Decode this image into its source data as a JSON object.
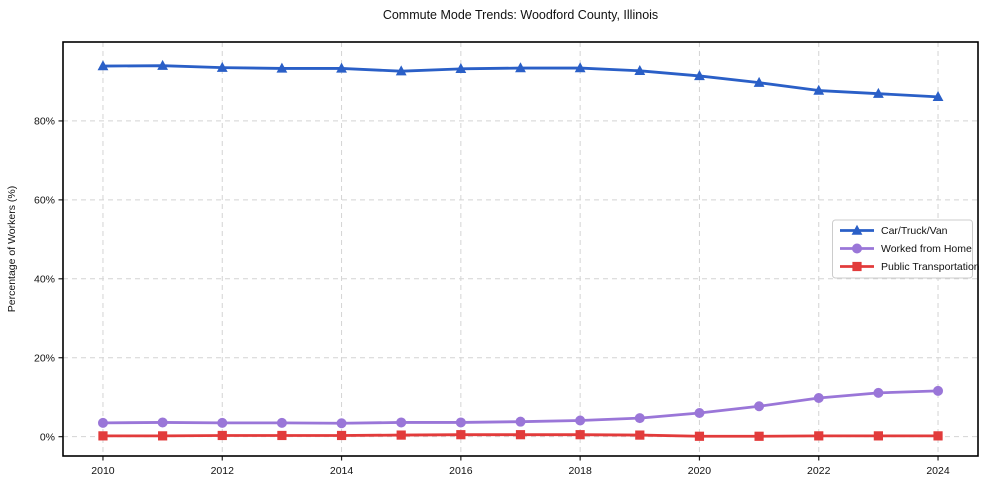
{
  "page": {
    "background_color": "#ffffff"
  },
  "chart_data": {
    "type": "line",
    "title": "Commute Mode Trends: Woodford County, Illinois",
    "xlabel": "",
    "ylabel": "Percentage of Workers (%)",
    "x": [
      2010,
      2011,
      2012,
      2013,
      2014,
      2015,
      2016,
      2017,
      2018,
      2019,
      2020,
      2021,
      2022,
      2023,
      2024
    ],
    "x_ticks": [
      2010,
      2012,
      2014,
      2016,
      2018,
      2020,
      2022,
      2024
    ],
    "y_ticks": [
      0,
      20,
      40,
      60,
      80
    ],
    "y_tick_labels": [
      "0%",
      "20%",
      "40%",
      "60%",
      "80%"
    ],
    "xlim": [
      2009.33,
      2024.67
    ],
    "ylim": [
      -4.9,
      100.0
    ],
    "grid": true,
    "grid_color": "#d4d4d4",
    "grid_style": "dashed",
    "plot_background": "#ffffff",
    "legend_position": "center-right",
    "series": [
      {
        "name": "Car/Truck/Van",
        "color": "#2a5fc7",
        "marker": "triangle-up",
        "values": [
          93.9,
          94.0,
          93.5,
          93.3,
          93.3,
          92.6,
          93.2,
          93.4,
          93.4,
          92.7,
          91.4,
          89.7,
          87.7,
          86.9,
          86.1
        ]
      },
      {
        "name": "Worked from Home",
        "color": "#9a76d8",
        "marker": "circle",
        "values": [
          3.5,
          3.6,
          3.5,
          3.5,
          3.4,
          3.6,
          3.6,
          3.8,
          4.1,
          4.7,
          6.0,
          7.7,
          9.8,
          11.1,
          11.6
        ]
      },
      {
        "name": "Public Transportation",
        "color": "#e23b3b",
        "marker": "square",
        "values": [
          0.2,
          0.2,
          0.3,
          0.3,
          0.3,
          0.4,
          0.5,
          0.5,
          0.5,
          0.4,
          0.1,
          0.1,
          0.2,
          0.2,
          0.2
        ]
      }
    ]
  }
}
